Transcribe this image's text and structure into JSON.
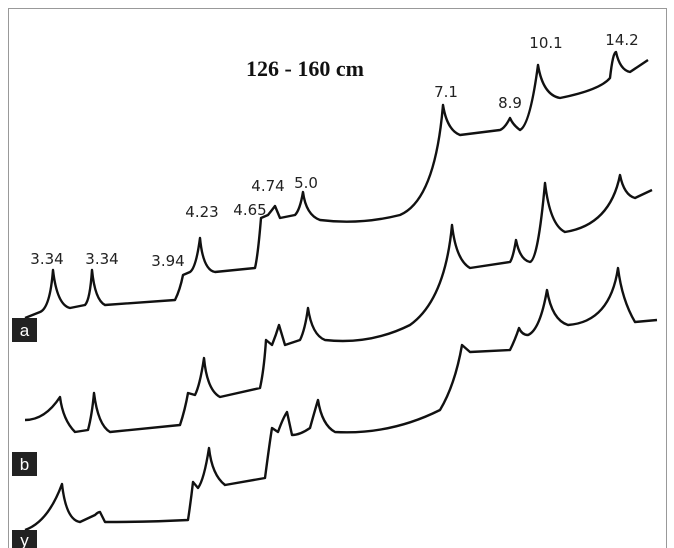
{
  "title": "126 - 160 cm",
  "peak_labels": [
    "3.34",
    "3.34",
    "3.94",
    "4.23",
    "4.65",
    "4.74",
    "5.0",
    "7.1",
    "8.9",
    "10.1",
    "14.2"
  ],
  "panels": [
    "a",
    "b",
    "y"
  ]
}
